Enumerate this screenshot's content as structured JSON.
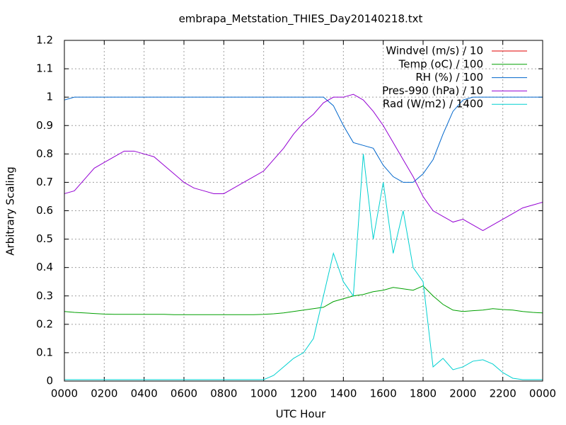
{
  "chart_data": {
    "type": "line",
    "title": "embrapa_Metstation_THIES_Day20140218.txt",
    "xlabel": "UTC Hour",
    "ylabel": "Arbitrary Scaling",
    "xlim": [
      0,
      24
    ],
    "ylim": [
      0,
      1.2
    ],
    "xticks": [
      {
        "value": 0,
        "label": "0000"
      },
      {
        "value": 2,
        "label": "0200"
      },
      {
        "value": 4,
        "label": "0400"
      },
      {
        "value": 6,
        "label": "0600"
      },
      {
        "value": 8,
        "label": "0800"
      },
      {
        "value": 10,
        "label": "1000"
      },
      {
        "value": 12,
        "label": "1200"
      },
      {
        "value": 14,
        "label": "1400"
      },
      {
        "value": 16,
        "label": "1600"
      },
      {
        "value": 18,
        "label": "1800"
      },
      {
        "value": 20,
        "label": "2000"
      },
      {
        "value": 22,
        "label": "2200"
      },
      {
        "value": 24,
        "label": "0000"
      }
    ],
    "yticks": [
      0,
      0.1,
      0.2,
      0.3,
      0.4,
      0.5,
      0.6,
      0.7,
      0.8,
      0.9,
      1,
      1.1,
      1.2
    ],
    "grid": true,
    "legend": "top-right",
    "x": [
      0,
      0.5,
      1,
      1.5,
      2,
      2.5,
      3,
      3.5,
      4,
      4.5,
      5,
      5.5,
      6,
      6.5,
      7,
      7.5,
      8,
      8.5,
      9,
      9.5,
      10,
      10.5,
      11,
      11.5,
      12,
      12.5,
      13,
      13.5,
      14,
      14.5,
      15,
      15.5,
      16,
      16.5,
      17,
      17.5,
      18,
      18.5,
      19,
      19.5,
      20,
      20.5,
      21,
      21.5,
      22,
      22.5,
      23,
      23.5,
      24
    ],
    "series": [
      {
        "name": "Windvel (m/s) / 10",
        "color": "#e00000",
        "values": [
          null,
          null,
          null,
          null,
          null,
          null,
          null,
          null,
          null,
          null,
          null,
          null,
          null,
          null,
          null,
          null,
          null,
          null,
          null,
          null,
          null,
          null,
          null,
          null,
          null,
          null,
          null,
          null,
          null,
          null,
          null,
          null,
          null,
          null,
          null,
          null,
          null,
          null,
          null,
          null,
          null,
          null,
          null,
          null,
          null,
          null,
          null,
          null,
          null
        ]
      },
      {
        "name": "Temp (oC) / 100",
        "color": "#00a000",
        "values": [
          0.245,
          0.242,
          0.24,
          0.238,
          0.236,
          0.235,
          0.235,
          0.235,
          0.235,
          0.235,
          0.235,
          0.234,
          0.234,
          0.234,
          0.234,
          0.234,
          0.234,
          0.234,
          0.234,
          0.234,
          0.235,
          0.237,
          0.24,
          0.245,
          0.25,
          0.255,
          0.26,
          0.28,
          0.29,
          0.3,
          0.305,
          0.315,
          0.32,
          0.33,
          0.325,
          0.32,
          0.335,
          0.3,
          0.27,
          0.25,
          0.245,
          0.248,
          0.25,
          0.255,
          0.252,
          0.25,
          0.245,
          0.242,
          0.24
        ]
      },
      {
        "name": "RH (%) / 100",
        "color": "#0066cc",
        "values": [
          0.99,
          1,
          1,
          1,
          1,
          1,
          1,
          1,
          1,
          1,
          1,
          1,
          1,
          1,
          1,
          1,
          1,
          1,
          1,
          1,
          1,
          1,
          1,
          1,
          1,
          1,
          1,
          0.97,
          0.9,
          0.84,
          0.83,
          0.82,
          0.76,
          0.72,
          0.7,
          0.7,
          0.73,
          0.78,
          0.87,
          0.95,
          0.99,
          1,
          1,
          1,
          1,
          1,
          1,
          1,
          1
        ]
      },
      {
        "name": "Pres-990 (hPa) / 10",
        "color": "#9400d3",
        "values": [
          0.66,
          0.67,
          0.71,
          0.75,
          0.77,
          0.79,
          0.81,
          0.81,
          0.8,
          0.79,
          0.76,
          0.73,
          0.7,
          0.68,
          0.67,
          0.66,
          0.66,
          0.68,
          0.7,
          0.72,
          0.74,
          0.78,
          0.82,
          0.87,
          0.91,
          0.94,
          0.98,
          1,
          1,
          1.01,
          0.99,
          0.95,
          0.9,
          0.84,
          0.78,
          0.72,
          0.65,
          0.6,
          0.58,
          0.56,
          0.57,
          0.55,
          0.53,
          0.55,
          0.57,
          0.59,
          0.61,
          0.62,
          0.63
        ]
      },
      {
        "name": "Rad (W/m2) / 1400",
        "color": "#00d0d0",
        "values": [
          0.005,
          0.005,
          0.005,
          0.005,
          0.005,
          0.005,
          0.005,
          0.005,
          0.005,
          0.005,
          0.005,
          0.005,
          0.005,
          0.005,
          0.005,
          0.005,
          0.005,
          0.005,
          0.005,
          0.005,
          0.005,
          0.02,
          0.05,
          0.08,
          0.1,
          0.15,
          0.3,
          0.45,
          0.35,
          0.3,
          0.8,
          0.5,
          0.7,
          0.45,
          0.6,
          0.4,
          0.35,
          0.05,
          0.08,
          0.04,
          0.05,
          0.07,
          0.075,
          0.06,
          0.03,
          0.01,
          0.005,
          0.005,
          0.005
        ]
      }
    ]
  }
}
